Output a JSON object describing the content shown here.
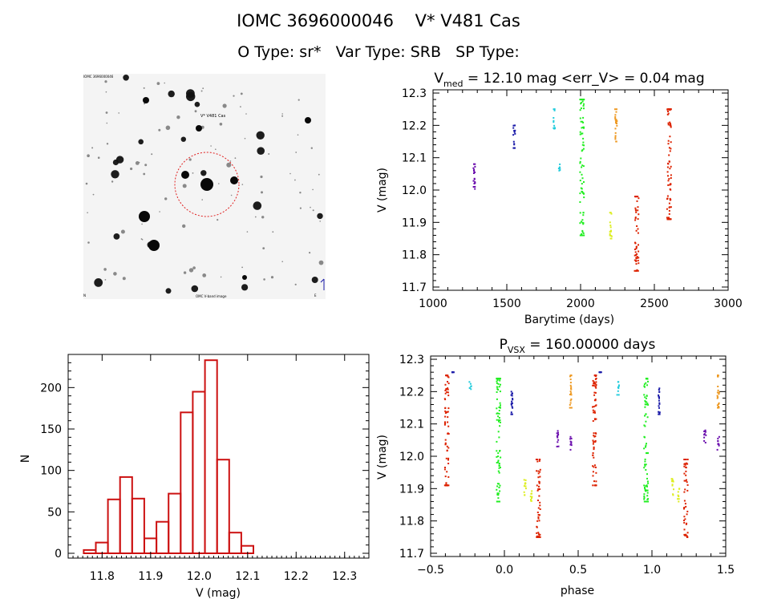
{
  "header": {
    "line1": "IOMC 3696000046    V* V481 Cas",
    "line2": "O Type: sr*   Var Type: SRB   SP Type:"
  },
  "finder": {
    "target_label": "V* V481 Cas",
    "corner_tl": "IOMC 3696000046",
    "corner_bl": "N",
    "corner_bottom": "OMC V-band image",
    "corner_br": "E",
    "marker_color": "#e02020"
  },
  "colors": {
    "violet": "#6a0dad",
    "navy": "#1a1aa8",
    "cyan": "#22ccdd",
    "green": "#22ee22",
    "yellow": "#ddee22",
    "orange": "#ee9922",
    "red": "#dd2200",
    "hist": "#cc1111"
  },
  "chart_data": [
    {
      "type": "scatter",
      "title": "V_med = 12.10 mag <err_V> = 0.04 mag",
      "title_parts": {
        "pre": "V",
        "sub": "med",
        "post": " = 12.10 mag <err_V> = 0.04 mag"
      },
      "xlabel": "Barytime (days)",
      "ylabel": "V (mag)",
      "xlim": [
        1000,
        3000
      ],
      "ylim": [
        12.31,
        11.69
      ],
      "y_inverted": true,
      "xticks": [
        "1000",
        "1500",
        "2000",
        "2500",
        "3000"
      ],
      "yticks": [
        "11.7",
        "11.8",
        "11.9",
        "12.0",
        "12.1",
        "12.2",
        "12.3"
      ],
      "series": [
        {
          "color": "violet",
          "x": 1280,
          "ymin": 12.0,
          "ymax": 12.08
        },
        {
          "color": "navy",
          "x": 1550,
          "ymin": 12.13,
          "ymax": 12.2
        },
        {
          "color": "cyan",
          "x": 1820,
          "ymin": 12.19,
          "ymax": 12.25
        },
        {
          "color": "cyan",
          "x": 1855,
          "ymin": 12.06,
          "ymax": 12.08
        },
        {
          "color": "green",
          "x": 2010,
          "ymin": 11.86,
          "ymax": 12.28
        },
        {
          "color": "yellow",
          "x": 2205,
          "ymin": 11.85,
          "ymax": 11.93
        },
        {
          "color": "orange",
          "x": 2240,
          "ymin": 12.15,
          "ymax": 12.25
        },
        {
          "color": "red",
          "x": 2380,
          "ymin": 11.75,
          "ymax": 11.98
        },
        {
          "color": "red",
          "x": 2600,
          "ymin": 11.91,
          "ymax": 12.25
        }
      ]
    },
    {
      "type": "bar",
      "title": "",
      "xlabel": "V (mag)",
      "ylabel": "N",
      "xlim": [
        11.73,
        12.35
      ],
      "ylim": [
        0,
        240
      ],
      "xticks": [
        "11.8",
        "11.9",
        "12.0",
        "12.1",
        "12.2",
        "12.3"
      ],
      "yticks": [
        "0",
        "50",
        "100",
        "150",
        "200"
      ],
      "bin_width": 0.025,
      "bin_start": 11.762,
      "values": [
        4,
        13,
        65,
        92,
        66,
        18,
        38,
        72,
        170,
        195,
        233,
        113,
        25,
        9
      ]
    },
    {
      "type": "scatter",
      "title": "P_VSX = 160.00000 days",
      "title_parts": {
        "pre": "P",
        "sub": "VSX",
        "post": " = 160.00000 days"
      },
      "xlabel": "phase",
      "ylabel": "V (mag)",
      "xlim": [
        -0.5,
        1.5
      ],
      "ylim": [
        12.31,
        11.69
      ],
      "y_inverted": true,
      "xticks": [
        "−0.5",
        "0.0",
        "0.5",
        "1.0",
        "1.5"
      ],
      "yticks": [
        "11.7",
        "11.8",
        "11.9",
        "12.0",
        "12.1",
        "12.2",
        "12.3"
      ],
      "series": [
        {
          "color": "red",
          "x": -0.39,
          "ymin": 11.91,
          "ymax": 12.25
        },
        {
          "color": "navy",
          "x": -0.35,
          "ymin": 12.26,
          "ymax": 12.26
        },
        {
          "color": "cyan",
          "x": -0.23,
          "ymin": 12.2,
          "ymax": 12.23
        },
        {
          "color": "green",
          "x": -0.04,
          "ymin": 11.86,
          "ymax": 12.24
        },
        {
          "color": "navy",
          "x": 0.05,
          "ymin": 12.13,
          "ymax": 12.21
        },
        {
          "color": "yellow",
          "x": 0.14,
          "ymin": 11.88,
          "ymax": 11.93
        },
        {
          "color": "yellow",
          "x": 0.18,
          "ymin": 11.86,
          "ymax": 11.9
        },
        {
          "color": "red",
          "x": 0.23,
          "ymin": 11.75,
          "ymax": 11.99
        },
        {
          "color": "violet",
          "x": 0.36,
          "ymin": 12.03,
          "ymax": 12.08
        },
        {
          "color": "violet",
          "x": 0.45,
          "ymin": 12.02,
          "ymax": 12.06
        },
        {
          "color": "orange",
          "x": 0.45,
          "ymin": 12.15,
          "ymax": 12.25
        },
        {
          "color": "red",
          "x": 0.61,
          "ymin": 11.91,
          "ymax": 12.25
        },
        {
          "color": "navy",
          "x": 0.65,
          "ymin": 12.26,
          "ymax": 12.26
        },
        {
          "color": "cyan",
          "x": 0.77,
          "ymin": 12.19,
          "ymax": 12.23
        },
        {
          "color": "green",
          "x": 0.96,
          "ymin": 11.86,
          "ymax": 12.24
        },
        {
          "color": "navy",
          "x": 1.05,
          "ymin": 12.13,
          "ymax": 12.21
        },
        {
          "color": "yellow",
          "x": 1.14,
          "ymin": 11.88,
          "ymax": 11.93
        },
        {
          "color": "yellow",
          "x": 1.18,
          "ymin": 11.86,
          "ymax": 11.9
        },
        {
          "color": "red",
          "x": 1.23,
          "ymin": 11.75,
          "ymax": 11.99
        },
        {
          "color": "violet",
          "x": 1.36,
          "ymin": 12.03,
          "ymax": 12.08
        },
        {
          "color": "violet",
          "x": 1.45,
          "ymin": 12.02,
          "ymax": 12.06
        },
        {
          "color": "orange",
          "x": 1.45,
          "ymin": 12.15,
          "ymax": 12.25
        }
      ]
    }
  ]
}
